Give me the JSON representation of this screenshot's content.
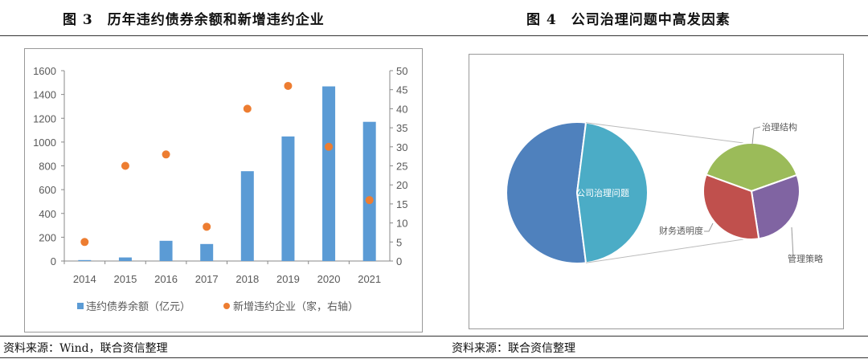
{
  "left_title": "图 3　历年违约债券余额和新增违约企业",
  "right_title": "图 4　公司治理问题中高发因素",
  "left_source": "资料来源：Wind，联合资信整理",
  "right_source": "资料来源：联合资信整理",
  "chart_data": [
    {
      "type": "bar",
      "categories": [
        "2014",
        "2015",
        "2016",
        "2017",
        "2018",
        "2019",
        "2020",
        "2021"
      ],
      "series": [
        {
          "name": "违约债券余额（亿元）",
          "type": "bar",
          "axis": "left",
          "color": "#5B9BD5",
          "values": [
            8,
            30,
            170,
            143,
            755,
            1047,
            1468,
            1170
          ]
        },
        {
          "name": "新增违约企业（家，右轴）",
          "type": "scatter",
          "axis": "right",
          "color": "#ED7D31",
          "values": [
            5,
            25,
            28,
            9,
            40,
            46,
            30,
            16
          ]
        }
      ],
      "ylim": [
        0,
        1600
      ],
      "yticks": [
        0,
        200,
        400,
        600,
        800,
        1000,
        1200,
        1400,
        1600
      ],
      "y2lim": [
        0,
        50
      ],
      "y2ticks": [
        0,
        5,
        10,
        15,
        20,
        25,
        30,
        35,
        40,
        45,
        50
      ],
      "legend": "bottom",
      "grid": false
    },
    {
      "type": "pie",
      "subtype": "bar-of-pie",
      "main": [
        {
          "label": "",
          "value": 54,
          "color": "#4F81BD"
        },
        {
          "label": "公司治理问题",
          "value": 46,
          "color": "#4BACC6"
        }
      ],
      "secondary": [
        {
          "label": "治理结构",
          "value": 39,
          "color": "#9BBB59"
        },
        {
          "label": "管理策略",
          "value": 28,
          "color": "#8064A2"
        },
        {
          "label": "财务透明度",
          "value": 33,
          "color": "#C0504D"
        }
      ]
    }
  ]
}
